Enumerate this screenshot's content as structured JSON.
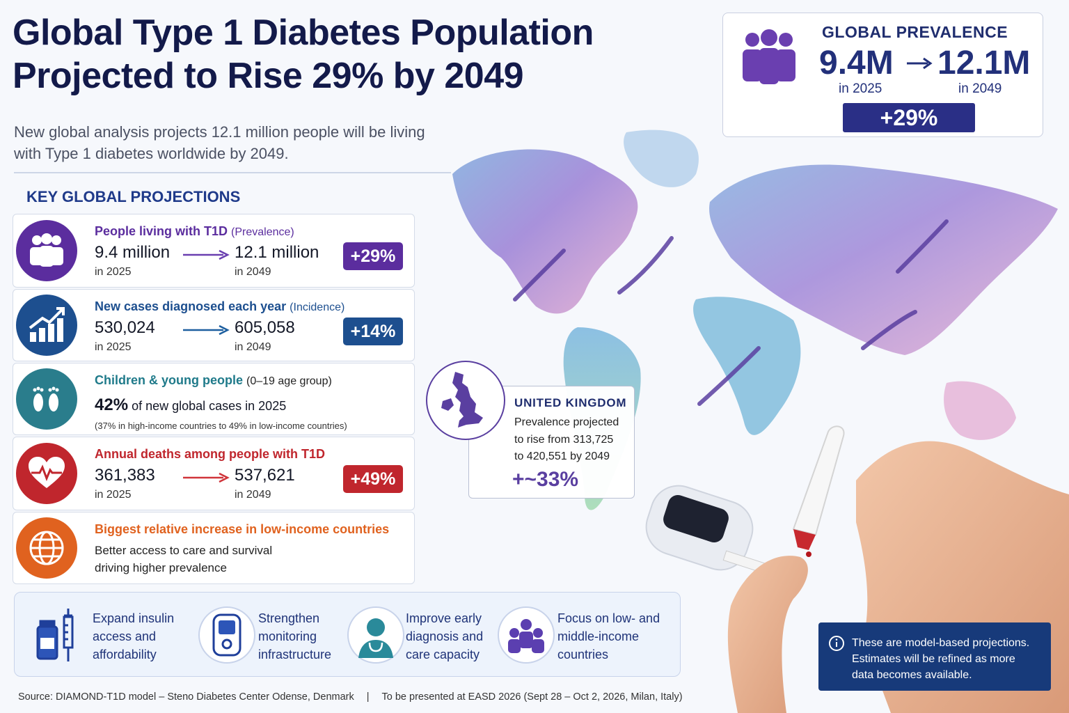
{
  "headline": {
    "title_line1": "Global Type 1 Diabetes Population",
    "title_line2": "Projected to Rise 29% by 2049",
    "subtitle_line1": "New global analysis projects 12.1 million people will be living",
    "subtitle_line2": "with Type 1 diabetes worldwide by 2049."
  },
  "key_projections": {
    "heading": "KEY GLOBAL PROJECTIONS",
    "prevalence": {
      "icon": "people-group-icon",
      "label": "People living with T1D",
      "qualifier": "(Prevalence)",
      "from_value": "9.4 million",
      "from_year": "in 2025",
      "to_value": "12.1 million",
      "to_year": "in 2049",
      "change": "+29%",
      "color": "#5b2d9e"
    },
    "incidence": {
      "icon": "bar-chart-up-icon",
      "label": "New cases diagnosed each year",
      "qualifier": "(Incidence)",
      "from_value": "530,024",
      "from_year": "in 2025",
      "to_value": "605,058",
      "to_year": "in 2049",
      "change": "+14%",
      "color": "#1d4f8f"
    },
    "children": {
      "icon": "footprints-icon",
      "label": "Children & young people",
      "qualifier": "(0–19 age group)",
      "pct": "42%",
      "line": "of new global cases in 2025",
      "detail": "(37% in high-income countries to 49% in low-income countries)",
      "color": "#1f7a8a"
    },
    "deaths": {
      "icon": "heart-pulse-icon",
      "label": "Annual deaths among people with T1D",
      "from_value": "361,383",
      "from_year": "in 2025",
      "to_value": "537,621",
      "to_year": "in 2049",
      "change": "+49%",
      "color": "#c0262d"
    },
    "low_income": {
      "icon": "globe-icon",
      "label": "Biggest relative increase in low-income countries",
      "desc_line1": "Better access to care and survival",
      "desc_line2": "driving higher prevalence",
      "color": "#e0621f"
    }
  },
  "actions": [
    {
      "icon": "insulin-vial-syringe-icon",
      "lines": [
        "Expand insulin",
        "access and",
        "affordability"
      ]
    },
    {
      "icon": "glucose-monitor-icon",
      "lines": [
        "Strengthen",
        "monitoring",
        "infrastructure"
      ]
    },
    {
      "icon": "doctor-icon",
      "lines": [
        "Improve early",
        "diagnosis and",
        "care capacity"
      ]
    },
    {
      "icon": "community-group-icon",
      "lines": [
        "Focus on low- and",
        "middle-income",
        "countries"
      ]
    }
  ],
  "global_prevalence": {
    "title": "GLOBAL PREVALENCE",
    "from_value": "9.4M",
    "from_year": "in 2025",
    "to_value": "12.1M",
    "to_year": "in 2049",
    "change": "+29%"
  },
  "uk": {
    "icon": "uk-map-icon",
    "title": "UNITED KINGDOM",
    "text_line1": "Prevalence projected",
    "text_line2": "to rise from 313,725",
    "text_line3": "to 420,551 by 2049",
    "change": "+~33%"
  },
  "note": {
    "icon": "info-icon",
    "line1": "These are model-based projections.",
    "line2": "Estimates will be refined as more",
    "line3": "data becomes available."
  },
  "footer": {
    "source": "Source: DIAMOND-T1D model – Steno Diabetes Center Odense, Denmark",
    "separator": "|",
    "event": "To be presented at EASD 2026 (Sept 28 – Oct 2, 2026, Milan, Italy)"
  }
}
